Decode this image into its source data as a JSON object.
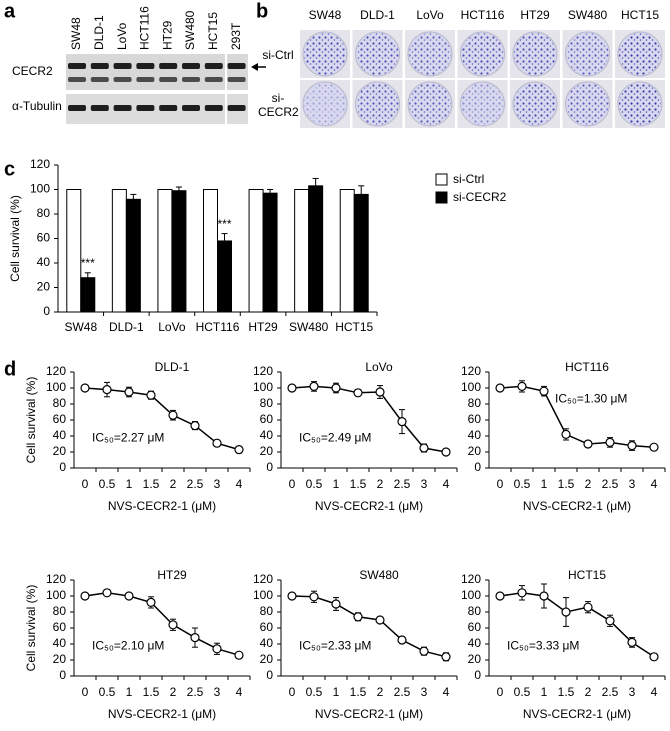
{
  "panel_labels": [
    "a",
    "b",
    "c",
    "d"
  ],
  "blot": {
    "lanes": [
      "SW48",
      "DLD-1",
      "LoVo",
      "HCT116",
      "HT29",
      "SW480",
      "HCT15",
      "293T"
    ],
    "rows": [
      "CECR2",
      "α-Tubulin"
    ]
  },
  "colony": {
    "columns": [
      "SW48",
      "DLD-1",
      "LoVo",
      "HCT116",
      "HT29",
      "SW480",
      "HCT15"
    ],
    "rows": [
      "si-Ctrl",
      "si-CECR2"
    ]
  },
  "chart_data": [
    {
      "type": "bar",
      "ylabel": "Cell survival (%)",
      "categories": [
        "SW48",
        "DLD-1",
        "LoVo",
        "HCT116",
        "HT29",
        "SW480",
        "HCT15"
      ],
      "series": [
        {
          "name": "si-Ctrl",
          "color": "#ffffff",
          "values": [
            100,
            100,
            100,
            100,
            100,
            100,
            100
          ]
        },
        {
          "name": "si-CECR2",
          "color": "#000000",
          "values": [
            28,
            92,
            99,
            58,
            97,
            103,
            96
          ],
          "errors": [
            4,
            4,
            3,
            6,
            3,
            6,
            7
          ],
          "significance": [
            "***",
            null,
            null,
            "***",
            null,
            null,
            null
          ]
        }
      ],
      "ylim": [
        0,
        120
      ],
      "yticks": [
        0,
        20,
        40,
        60,
        80,
        100,
        120
      ],
      "legend": "right"
    },
    {
      "type": "line",
      "title": "DLD-1",
      "annotation": "IC₅₀=2.27 μM",
      "xlabel": "NVS-CECR2-1 (μM)",
      "ylabel": "Cell survival (%)",
      "categories": [
        "0",
        "0.5",
        "1",
        "1.5",
        "2",
        "2.5",
        "3",
        "4"
      ],
      "values": [
        100,
        98,
        95,
        91,
        66,
        53,
        31,
        23
      ],
      "errors": [
        0,
        9,
        6,
        5,
        6,
        5,
        4,
        4
      ],
      "color": "#000000",
      "ylim": [
        0,
        120
      ],
      "yticks": [
        0,
        20,
        40,
        60,
        80,
        100,
        120
      ]
    },
    {
      "type": "line",
      "title": "LoVo",
      "annotation": "IC₅₀=2.49 μM",
      "xlabel": "NVS-CECR2-1 (μM)",
      "categories": [
        "0",
        "0.5",
        "1",
        "1.5",
        "2",
        "2.5",
        "3",
        "4"
      ],
      "values": [
        100,
        102,
        100,
        94,
        95,
        58,
        25,
        20
      ],
      "errors": [
        0,
        6,
        6,
        4,
        8,
        15,
        5,
        2
      ],
      "color": "#000000",
      "ylim": [
        0,
        120
      ],
      "yticks": [
        0,
        20,
        40,
        60,
        80,
        100,
        120
      ]
    },
    {
      "type": "line",
      "title": "HCT116",
      "annotation": "IC₅₀=1.30 μM",
      "xlabel": "NVS-CECR2-1 (μM)",
      "categories": [
        "0",
        "0.5",
        "1",
        "1.5",
        "2",
        "2.5",
        "3",
        "4"
      ],
      "values": [
        100,
        102,
        96,
        42,
        30,
        32,
        28,
        26
      ],
      "errors": [
        0,
        7,
        6,
        7,
        4,
        6,
        6,
        2
      ],
      "color": "#000000",
      "ylim": [
        0,
        120
      ],
      "yticks": [
        0,
        20,
        40,
        60,
        80,
        100,
        120
      ]
    },
    {
      "type": "line",
      "title": "HT29",
      "annotation": "IC₅₀=2.10 μM",
      "xlabel": "NVS-CECR2-1 (μM)",
      "ylabel": "Cell survival (%)",
      "categories": [
        "0",
        "0.5",
        "1",
        "1.5",
        "2",
        "2.5",
        "3",
        "4"
      ],
      "values": [
        100,
        104,
        100,
        92,
        64,
        48,
        34,
        26
      ],
      "errors": [
        0,
        2,
        2,
        7,
        7,
        12,
        7,
        2
      ],
      "color": "#000000",
      "ylim": [
        0,
        120
      ],
      "yticks": [
        0,
        20,
        40,
        60,
        80,
        100,
        120
      ]
    },
    {
      "type": "line",
      "title": "SW480",
      "annotation": "IC₅₀=2.33 μM",
      "xlabel": "NVS-CECR2-1 (μM)",
      "categories": [
        "0",
        "0.5",
        "1",
        "1.5",
        "2",
        "2.5",
        "3",
        "4"
      ],
      "values": [
        100,
        99,
        90,
        74,
        70,
        45,
        31,
        24
      ],
      "errors": [
        0,
        7,
        8,
        5,
        2,
        4,
        5,
        5
      ],
      "color": "#000000",
      "ylim": [
        0,
        120
      ],
      "yticks": [
        0,
        20,
        40,
        60,
        80,
        100,
        120
      ]
    },
    {
      "type": "line",
      "title": "HCT15",
      "annotation": "IC₅₀=3.33 μM",
      "xlabel": "NVS-CECR2-1 (μM)",
      "categories": [
        "0",
        "0.5",
        "1",
        "1.5",
        "2",
        "2.5",
        "3",
        "4"
      ],
      "values": [
        100,
        104,
        100,
        80,
        86,
        69,
        42,
        24
      ],
      "errors": [
        0,
        9,
        15,
        18,
        7,
        7,
        6,
        4
      ],
      "color": "#000000",
      "ylim": [
        0,
        120
      ],
      "yticks": [
        0,
        20,
        40,
        60,
        80,
        100,
        120
      ]
    }
  ]
}
